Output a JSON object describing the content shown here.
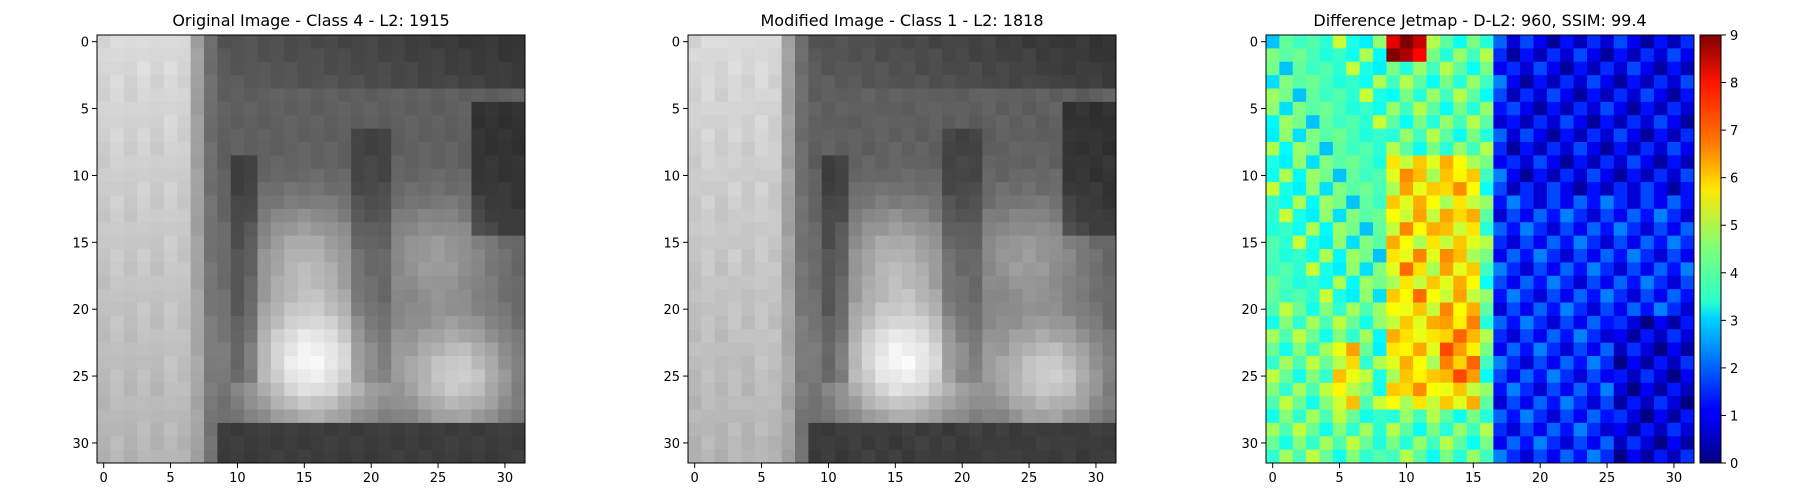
{
  "chart_data": [
    {
      "type": "heatmap",
      "title": "Original Image - Class 4 - L2: 1915",
      "title_color": "#000000",
      "colormap": "gray",
      "grid_size": [
        32,
        32
      ],
      "x_ticks": [
        0,
        5,
        10,
        15,
        20,
        25,
        30
      ],
      "y_ticks": [
        0,
        5,
        10,
        15,
        20,
        25,
        30
      ],
      "xlim": [
        -0.5,
        31.5
      ],
      "ylim": [
        31.5,
        -0.5
      ],
      "value_range": [
        0,
        255
      ]
    },
    {
      "type": "heatmap",
      "title": "Modified Image - Class 1 - L2: 1818",
      "title_color": "#ff0000",
      "colormap": "gray",
      "grid_size": [
        32,
        32
      ],
      "x_ticks": [
        0,
        5,
        10,
        15,
        20,
        25,
        30
      ],
      "y_ticks": [
        0,
        5,
        10,
        15,
        20,
        25,
        30
      ],
      "xlim": [
        -0.5,
        31.5
      ],
      "ylim": [
        31.5,
        -0.5
      ],
      "value_range": [
        0,
        255
      ]
    },
    {
      "type": "heatmap",
      "title": "Difference Jetmap - D-L2: 960, SSIM: 99.4",
      "title_color": "#000000",
      "colormap": "jet",
      "grid_size": [
        32,
        32
      ],
      "x_ticks": [
        0,
        5,
        10,
        15,
        20,
        25,
        30
      ],
      "y_ticks": [
        0,
        5,
        10,
        15,
        20,
        25,
        30
      ],
      "xlim": [
        -0.5,
        31.5
      ],
      "ylim": [
        31.5,
        -0.5
      ],
      "colorbar": {
        "min": 0,
        "max": 9,
        "ticks": [
          0,
          1,
          2,
          3,
          4,
          5,
          6,
          7,
          8,
          9
        ]
      }
    }
  ]
}
